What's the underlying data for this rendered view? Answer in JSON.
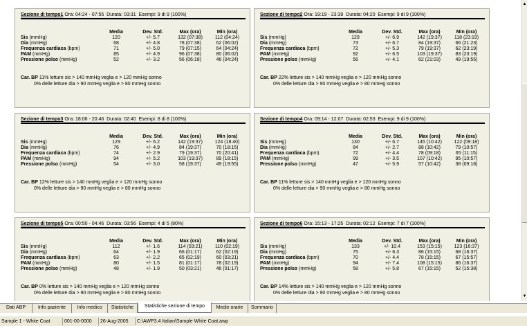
{
  "labels": {
    "ora": "Ora:",
    "durata": "Durata:",
    "esempi": "Esempi:"
  },
  "columns": [
    "Media",
    "Dev. Std.",
    "Max (ora)",
    "Min (ora)"
  ],
  "row_labels": [
    {
      "bold": "Sis",
      "unit": " (mmHg)"
    },
    {
      "bold": "Dia",
      "unit": " (mmHg)"
    },
    {
      "bold": "Frequenza cardiaca",
      "unit": " (bpm)"
    },
    {
      "bold": "PAM",
      "unit": " (mmHg)"
    },
    {
      "bold": "Pressione polso",
      "unit": " (mmHg)"
    }
  ],
  "car_bp_label": "Car. BP",
  "panels": [
    {
      "name": "Sezione di tempo1",
      "ora": "04:24 - 07:55",
      "durata": "03:31",
      "esempi": "9 di 9 (100%)",
      "rows": [
        [
          "120",
          "+/- 5.7",
          "132 (07:38)",
          "112 (04:24)"
        ],
        [
          "68",
          "+/- 4.8",
          "78 (07:38)",
          "62 (06:02)"
        ],
        [
          "71",
          "+/- 5.0",
          "79 (07:15)",
          "64 (04:24)"
        ],
        [
          "85",
          "+/- 4.9",
          "96 (07:38)",
          "80 (06:02)"
        ],
        [
          "52",
          "+/- 3.2",
          "56 (06:18)",
          "46 (04:24)"
        ]
      ],
      "note1": "11% letture sis > 140 mmHg veglia e > 120 mmHg sonno",
      "note2": "0% delle letture dia > 90 mmHg veglia e > 80 mmHg sonno"
    },
    {
      "name": "Sezione di tempo2",
      "ora": "19:19 - 23:39",
      "durata": "04:20",
      "esempi": "9 di 9 (100%)",
      "rows": [
        [
          "129",
          "+/- 6.9",
          "142 (19:37)",
          "118 (23:19)"
        ],
        [
          "73",
          "+/- 6.7",
          "84 (19:37)",
          "66 (21:23)"
        ],
        [
          "72",
          "+/- 5.3",
          "79 (19:37)",
          "62 (23:19)"
        ],
        [
          "92",
          "+/- 6.5",
          "103 (19:37)",
          "83 (23:19)"
        ],
        [
          "56",
          "+/- 4.1",
          "62 (21:03)",
          "49 (19:55)"
        ]
      ],
      "note1": "22% letture sis > 140 mmHg veglia e > 120 mmHg sonno",
      "note2": "0% delle letture dia > 90 mmHg veglia e > 80 mmHg sonno"
    },
    {
      "name": "Sezione di tempo3",
      "ora": "18:06 - 20:46",
      "durata": "02:40",
      "esempi": "8 di 8 (100%)",
      "rows": [
        [
          "129",
          "+/- 6.2",
          "142 (19:37)",
          "124 (18:40)"
        ],
        [
          "76",
          "+/- 4.9",
          "84 (19:37)",
          "70 (18:15)"
        ],
        [
          "74",
          "+/- 2.9",
          "79 (19:37)",
          "70 (20:41)"
        ],
        [
          "94",
          "+/- 5.2",
          "103 (19:37)",
          "89 (18:15)"
        ],
        [
          "54",
          "+/- 3.0",
          "58 (19:37)",
          "49 (19:55)"
        ]
      ],
      "note1": "12% letture sis > 140 mmHg veglia e > 120 mmHg sonno",
      "note2": "0% delle letture dia > 90 mmHg veglia e > 80 mmHg sonno"
    },
    {
      "name": "Sezione di tempo4",
      "ora": "09:14 - 12:07",
      "durata": "02:53",
      "esempi": "9 di 9 (100%)",
      "rows": [
        [
          "130",
          "+/- 6.7",
          "145 (10:42)",
          "122 (09:18)"
        ],
        [
          "84",
          "+/- 2.7",
          "88 (10:42)",
          "79 (10:57)"
        ],
        [
          "72",
          "+/- 4.4",
          "78 (09:18)",
          "65 (11:15)"
        ],
        [
          "99",
          "+/- 3.5",
          "107 (10:42)",
          "95 (10:57)"
        ],
        [
          "47",
          "+/- 5.9",
          "57 (10:42)",
          "38 (09:18)"
        ]
      ],
      "note1": "11% letture sis > 140 mmHg veglia e > 120 mmHg sonno",
      "note2": "0% delle letture dia > 90 mmHg veglia e > 80 mmHg sonno"
    },
    {
      "name": "Sezione di tempo5",
      "ora": "00:50 - 04:46",
      "durata": "03:56",
      "esempi": "4 di 5 (80%)",
      "rows": [
        [
          "112",
          "+/- 1.6",
          "114 (03:21)",
          "110 (02:19)"
        ],
        [
          "64",
          "+/- 1.9",
          "66 (01:17)",
          "62 (02:19)"
        ],
        [
          "63",
          "+/- 2.2",
          "65 (02:19)",
          "60 (03:21)"
        ],
        [
          "80",
          "+/- 1.5",
          "81 (01:17)",
          "78 (02:19)"
        ],
        [
          "48",
          "+/- 1.9",
          "50 (03:21)",
          "46 (01:17)"
        ]
      ],
      "note1": "0% letture sis > 140 mmHg veglia e > 120 mmHg sonno",
      "note2": "0% delle letture dia > 90 mmHg veglia e > 80 mmHg sonno"
    },
    {
      "name": "Sezione di tempo6",
      "ora": "15:13 - 17:25",
      "durata": "02:12",
      "esempi": "7 di 7 (100%)",
      "rows": [
        [
          "133",
          "+/- 10.4",
          "153 (15:15)",
          "123 (16:37)"
        ],
        [
          "75",
          "+/- 6.3",
          "86 (15:15)",
          "68 (16:37)"
        ],
        [
          "70",
          "+/- 4.4",
          "78 (15:15)",
          "67 (15:57)"
        ],
        [
          "94",
          "+/- 7.4",
          "108 (15:15)",
          "86 (16:37)"
        ],
        [
          "58",
          "+/- 5.8",
          "67 (15:15)",
          "52 (15:38)"
        ]
      ],
      "note1": "14% letture sis > 140 mmHg veglia e > 120 mmHg sonno",
      "note2": "0% delle letture dia > 90 mmHg veglia e > 80 mmHg sonno"
    }
  ],
  "tabs": [
    {
      "label": "Dati ABP",
      "active": false
    },
    {
      "label": "Info paziente",
      "active": false
    },
    {
      "label": "Info medico",
      "active": false
    },
    {
      "label": "Statistiche",
      "active": false
    },
    {
      "label": "Statistiche sezione di tempo",
      "active": true
    },
    {
      "label": "Medie orarie",
      "active": false
    },
    {
      "label": "Sommario",
      "active": false
    }
  ],
  "status": {
    "sample": "Sample 1 - White Coat",
    "id": "001-00-0000",
    "date": "26-Aug-2005",
    "path": "C:\\AWP3.4 Italian\\Sample White Coat.awp"
  }
}
